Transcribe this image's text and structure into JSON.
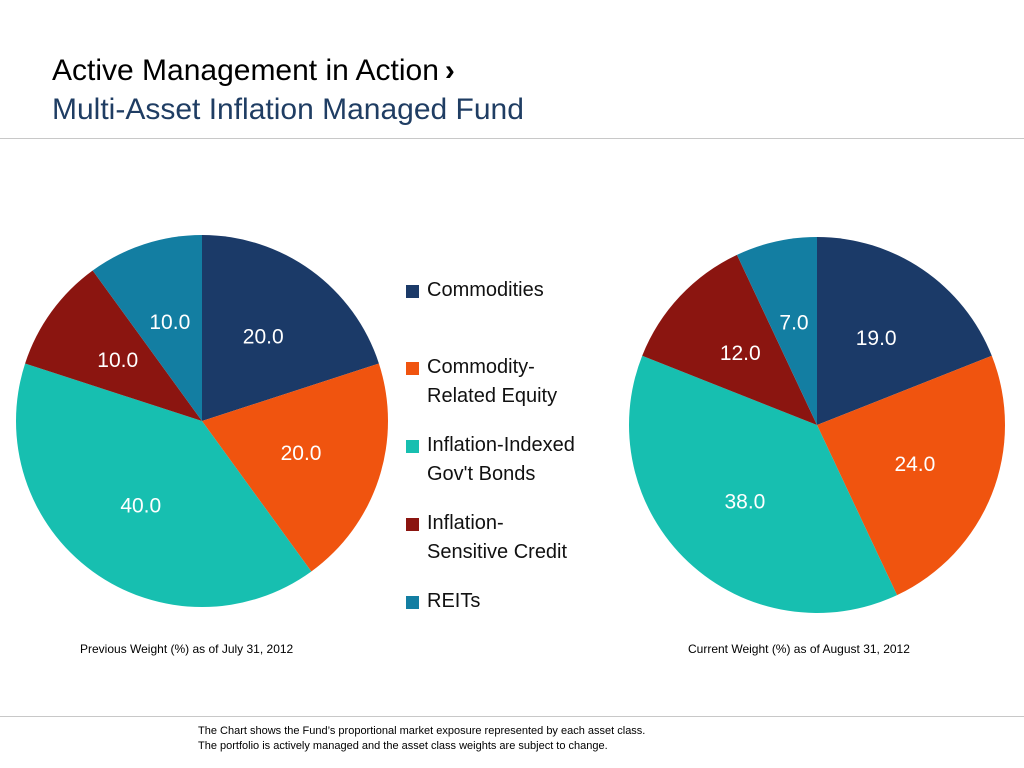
{
  "header": {
    "title": "Active Management in Action",
    "chevron": "›",
    "subtitle": "Multi-Asset Inflation Managed Fund"
  },
  "legend": {
    "items": [
      {
        "line1": "Commodities",
        "line2": "",
        "color": "#1b3a68"
      },
      {
        "line1": "Commodity-",
        "line2": "Related Equity",
        "color": "#f0540f"
      },
      {
        "line1": "Inflation-Indexed",
        "line2": "Gov't Bonds",
        "color": "#17bfb0"
      },
      {
        "line1": "Inflation-",
        "line2": "Sensitive Credit",
        "color": "#8b1510"
      },
      {
        "line1": "REITs",
        "line2": "",
        "color": "#137ea2"
      }
    ]
  },
  "chart_data": [
    {
      "type": "pie",
      "caption": "Previous Weight (%) as of July 31, 2012",
      "categories": [
        "Commodities",
        "Commodity-Related Equity",
        "Inflation-Indexed Gov't Bonds",
        "Inflation-Sensitive Credit",
        "REITs"
      ],
      "values": [
        20.0,
        20.0,
        40.0,
        10.0,
        10.0
      ],
      "labels": [
        "20.0",
        "20.0",
        "40.0",
        "10.0",
        "10.0"
      ],
      "colors": [
        "#1b3a68",
        "#f0540f",
        "#17bfb0",
        "#8b1510",
        "#137ea2"
      ]
    },
    {
      "type": "pie",
      "caption": "Current Weight (%) as of August 31, 2012",
      "categories": [
        "Commodities",
        "Commodity-Related Equity",
        "Inflation-Indexed Gov't Bonds",
        "Inflation-Sensitive Credit",
        "REITs"
      ],
      "values": [
        19.0,
        24.0,
        38.0,
        12.0,
        7.0
      ],
      "labels": [
        "19.0",
        "24.0",
        "38.0",
        "12.0",
        "7.0"
      ],
      "colors": [
        "#1b3a68",
        "#f0540f",
        "#17bfb0",
        "#8b1510",
        "#137ea2"
      ]
    }
  ],
  "footnote": {
    "line1": "The Chart shows the Fund’s proportional market exposure represented by each asset class.",
    "line2": "The portfolio is actively managed and the asset class weights are subject to change."
  }
}
